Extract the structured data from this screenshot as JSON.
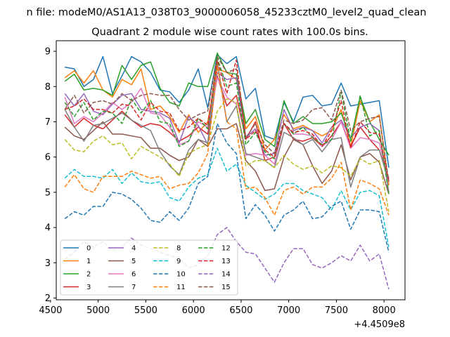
{
  "figure": {
    "suptitle": "n file: modeM0/AS1A13_038T03_9000006058_45233cztM0_level2_quad_clean"
  },
  "chart_data": {
    "type": "line",
    "title": "Quadrant 2 module wise count rates with 100.0s bins.",
    "xlabel": "",
    "ylabel": "",
    "x_offset_label": "+4.4509e8",
    "xlim": [
      4560,
      8220
    ],
    "ylim": [
      1.95,
      9.3
    ],
    "xticks": [
      4500,
      5000,
      5500,
      6000,
      6500,
      7000,
      7500,
      8000
    ],
    "yticks": [
      2,
      3,
      4,
      5,
      6,
      7,
      8,
      9
    ],
    "legend": {
      "placement": "lower-left",
      "ncol": 4
    },
    "x": [
      4650,
      4750,
      4850,
      4950,
      5050,
      5150,
      5250,
      5350,
      5450,
      5550,
      5650,
      5750,
      5850,
      5950,
      6050,
      6150,
      6250,
      6350,
      6450,
      6550,
      6650,
      6750,
      6850,
      6950,
      7050,
      7150,
      7250,
      7350,
      7450,
      7550,
      7650,
      7750,
      7850,
      7950,
      8050
    ],
    "series": [
      {
        "name": "0",
        "color": "#1f77b4",
        "dash": "solid",
        "values": [
          8.55,
          8.5,
          8.0,
          8.2,
          8.85,
          7.8,
          8.3,
          8.85,
          8.7,
          8.4,
          7.9,
          7.85,
          7.55,
          7.9,
          8.5,
          7.4,
          8.9,
          8.65,
          8.85,
          7.65,
          7.95,
          6.6,
          6.5,
          7.55,
          7.0,
          7.7,
          7.75,
          7.45,
          7.5,
          8.1,
          7.45,
          7.5,
          7.55,
          7.6,
          5.7
        ]
      },
      {
        "name": "1",
        "color": "#ff7f0e",
        "dash": "solid",
        "values": [
          8.25,
          8.45,
          8.1,
          8.45,
          7.9,
          7.7,
          8.2,
          8.05,
          8.5,
          7.35,
          7.45,
          7.15,
          6.7,
          7.2,
          6.7,
          7.0,
          8.5,
          8.4,
          8.2,
          6.8,
          7.15,
          6.2,
          6.5,
          7.2,
          6.8,
          6.9,
          6.75,
          6.6,
          6.75,
          7.35,
          6.3,
          7.6,
          7.0,
          7.2,
          5.2
        ]
      },
      {
        "name": "2",
        "color": "#2ca02c",
        "dash": "solid",
        "values": [
          8.15,
          8.35,
          7.9,
          7.95,
          7.9,
          7.75,
          8.6,
          8.2,
          8.6,
          8.7,
          7.95,
          7.55,
          7.45,
          8.1,
          8.0,
          8.0,
          8.95,
          8.4,
          8.35,
          6.95,
          7.35,
          6.5,
          6.3,
          7.6,
          6.95,
          7.15,
          6.95,
          6.95,
          7.0,
          7.25,
          6.5,
          7.7,
          7.0,
          6.5,
          6.05
        ]
      },
      {
        "name": "3",
        "color": "#d62728",
        "dash": "solid",
        "values": [
          7.2,
          6.85,
          7.1,
          6.9,
          6.8,
          7.05,
          7.3,
          7.05,
          6.85,
          6.95,
          6.9,
          6.7,
          6.45,
          6.6,
          6.85,
          6.65,
          8.3,
          7.45,
          7.75,
          6.5,
          7.0,
          5.9,
          6.0,
          6.95,
          6.5,
          6.45,
          6.55,
          6.3,
          6.6,
          7.0,
          6.3,
          6.85,
          6.5,
          6.2,
          5.4
        ]
      },
      {
        "name": "4",
        "color": "#9467bd",
        "dash": "solid",
        "values": [
          7.8,
          7.45,
          7.8,
          7.3,
          7.2,
          7.5,
          7.75,
          7.8,
          7.35,
          7.3,
          7.25,
          7.1,
          6.4,
          7.15,
          6.9,
          6.35,
          8.4,
          8.2,
          8.25,
          6.55,
          6.8,
          6.05,
          6.1,
          7.35,
          6.75,
          6.85,
          6.75,
          6.4,
          6.85,
          7.05,
          6.55,
          6.85,
          6.95,
          6.75,
          5.0
        ]
      },
      {
        "name": "5",
        "color": "#8c564b",
        "dash": "solid",
        "values": [
          6.85,
          6.6,
          6.5,
          6.75,
          7.0,
          6.65,
          6.65,
          6.6,
          6.55,
          6.25,
          6.25,
          6.05,
          5.9,
          6.0,
          6.5,
          6.3,
          6.8,
          6.8,
          6.95,
          5.9,
          5.6,
          5.05,
          5.1,
          6.0,
          6.5,
          6.35,
          5.75,
          5.25,
          5.6,
          6.35,
          5.35,
          6.0,
          6.1,
          5.85,
          4.95
        ]
      },
      {
        "name": "6",
        "color": "#e377c2",
        "dash": "solid",
        "values": [
          7.7,
          6.95,
          7.15,
          7.0,
          7.25,
          7.55,
          7.35,
          7.55,
          7.95,
          7.25,
          7.2,
          6.85,
          6.35,
          6.45,
          7.0,
          6.85,
          8.25,
          7.7,
          7.5,
          6.05,
          6.1,
          6.05,
          5.8,
          6.95,
          6.65,
          6.65,
          6.6,
          6.3,
          6.5,
          7.0,
          6.25,
          6.55,
          6.5,
          6.4,
          5.35
        ]
      },
      {
        "name": "7",
        "color": "#7f7f7f",
        "dash": "solid",
        "values": [
          7.35,
          6.85,
          6.45,
          6.9,
          6.95,
          7.1,
          7.25,
          7.05,
          6.9,
          6.75,
          6.15,
          5.75,
          5.5,
          6.2,
          6.5,
          6.4,
          8.7,
          7.0,
          7.45,
          6.1,
          6.0,
          5.9,
          5.7,
          6.7,
          6.55,
          6.35,
          6.5,
          6.15,
          6.5,
          6.55,
          5.15,
          6.0,
          6.2,
          6.2,
          5.3
        ]
      },
      {
        "name": "8",
        "color": "#bcbd22",
        "dash": "dash",
        "values": [
          6.5,
          6.2,
          6.15,
          6.45,
          6.6,
          6.35,
          6.4,
          5.95,
          6.3,
          6.15,
          6.0,
          5.8,
          5.45,
          6.1,
          6.25,
          6.35,
          7.3,
          7.65,
          7.55,
          5.75,
          5.9,
          5.9,
          5.7,
          6.05,
          5.8,
          5.65,
          5.75,
          5.55,
          5.75,
          5.7,
          5.45,
          5.95,
          5.8,
          5.9,
          4.45
        ]
      },
      {
        "name": "9",
        "color": "#17becf",
        "dash": "dash",
        "values": [
          5.4,
          5.65,
          5.45,
          5.45,
          5.4,
          5.65,
          5.25,
          5.55,
          5.3,
          5.25,
          5.3,
          4.85,
          4.75,
          5.15,
          5.4,
          5.5,
          6.25,
          5.6,
          5.8,
          5.2,
          5.0,
          4.8,
          4.95,
          5.25,
          5.25,
          5.05,
          4.95,
          4.85,
          4.5,
          5.05,
          4.5,
          5.0,
          5.05,
          4.9,
          3.45
        ]
      },
      {
        "name": "10",
        "color": "#1f77b4",
        "dash": "dash",
        "values": [
          4.25,
          4.45,
          4.35,
          4.6,
          4.6,
          5.0,
          4.95,
          4.8,
          4.55,
          4.2,
          4.15,
          4.45,
          4.2,
          4.55,
          5.25,
          5.45,
          6.95,
          6.4,
          6.1,
          4.25,
          4.65,
          4.35,
          3.9,
          4.35,
          4.5,
          4.75,
          4.25,
          4.3,
          4.6,
          4.75,
          3.95,
          4.5,
          4.5,
          4.45,
          3.3
        ]
      },
      {
        "name": "11",
        "color": "#ff7f0e",
        "dash": "dash",
        "values": [
          5.15,
          5.5,
          5.1,
          5.0,
          5.45,
          5.45,
          5.45,
          5.6,
          5.5,
          5.4,
          5.45,
          5.1,
          5.2,
          5.25,
          5.55,
          6.1,
          8.6,
          7.0,
          6.8,
          5.1,
          5.15,
          4.85,
          4.35,
          5.05,
          5.15,
          4.95,
          5.15,
          5.15,
          5.4,
          5.85,
          4.5,
          5.35,
          5.25,
          5.1,
          4.35
        ]
      },
      {
        "name": "12",
        "color": "#2ca02c",
        "dash": "dash",
        "values": [
          7.55,
          7.15,
          7.55,
          7.05,
          7.3,
          7.25,
          6.95,
          7.65,
          7.25,
          7.6,
          7.0,
          6.95,
          6.3,
          6.45,
          7.1,
          6.8,
          8.8,
          8.0,
          8.1,
          6.35,
          6.7,
          6.15,
          5.95,
          6.95,
          6.65,
          6.85,
          6.55,
          6.35,
          6.5,
          7.85,
          6.45,
          7.75,
          6.6,
          6.75,
          4.95
        ]
      },
      {
        "name": "13",
        "color": "#d62728",
        "dash": "dash",
        "values": [
          7.35,
          7.45,
          7.65,
          7.35,
          7.35,
          7.25,
          7.5,
          7.45,
          7.05,
          7.55,
          7.3,
          7.25,
          6.75,
          6.85,
          7.1,
          6.9,
          8.75,
          7.8,
          8.75,
          6.5,
          6.75,
          6.2,
          6.0,
          6.95,
          6.7,
          6.75,
          6.65,
          6.3,
          6.75,
          7.6,
          6.25,
          7.0,
          6.7,
          6.65,
          5.3
        ]
      },
      {
        "name": "14",
        "color": "#9467bd",
        "dash": "dash",
        "values": [
          3.1,
          3.3,
          3.6,
          3.45,
          3.6,
          3.35,
          3.45,
          3.7,
          3.5,
          3.4,
          3.3,
          3.2,
          3.15,
          2.85,
          2.95,
          3.2,
          3.8,
          4.0,
          3.6,
          3.3,
          3.25,
          2.85,
          2.45,
          3.0,
          3.4,
          3.4,
          2.95,
          2.85,
          3.0,
          3.2,
          3.05,
          3.5,
          3.05,
          3.25,
          2.25
        ]
      },
      {
        "name": "15",
        "color": "#8c564b",
        "dash": "dash",
        "values": [
          7.35,
          7.75,
          7.25,
          7.55,
          7.6,
          7.5,
          7.8,
          7.6,
          7.75,
          7.8,
          7.75,
          7.75,
          7.35,
          7.05,
          7.2,
          7.3,
          8.85,
          8.4,
          8.5,
          6.55,
          6.95,
          6.35,
          6.1,
          7.05,
          6.95,
          7.05,
          7.35,
          7.4,
          7.05,
          7.9,
          6.75,
          7.0,
          7.1,
          7.15,
          5.3
        ]
      }
    ]
  }
}
